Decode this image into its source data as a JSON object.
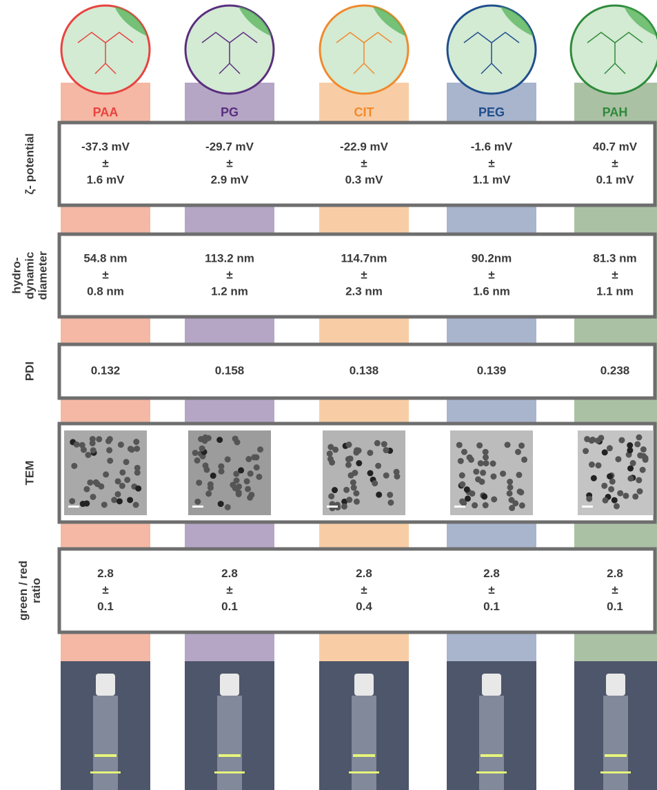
{
  "columns": [
    {
      "name": "PAA",
      "color": "#e8423f",
      "strip": "#f4b8a4"
    },
    {
      "name": "PG",
      "color": "#5a2e7e",
      "strip": "#b5a6c6"
    },
    {
      "name": "CIT",
      "color": "#f08a2c",
      "strip": "#f8cda6"
    },
    {
      "name": "PEG",
      "color": "#1f4e8c",
      "strip": "#a9b4cd"
    },
    {
      "name": "PAH",
      "color": "#2e8a3a",
      "strip": "#abc1a4"
    }
  ],
  "rows": [
    {
      "label": [
        "ζ- potential"
      ],
      "cells": [
        [
          "-37.3 mV",
          "±",
          "1.6 mV"
        ],
        [
          "-29.7 mV",
          "±",
          "2.9 mV"
        ],
        [
          "-22.9 mV",
          "±",
          "0.3 mV"
        ],
        [
          "-1.6 mV",
          "±",
          "1.1 mV"
        ],
        [
          "40.7 mV",
          "±",
          "0.1 mV"
        ]
      ]
    },
    {
      "label": [
        "hydro-",
        "dynamic",
        "diameter"
      ],
      "cells": [
        [
          "54.8 nm",
          "±",
          "0.8 nm"
        ],
        [
          "113.2 nm",
          "±",
          "1.2 nm"
        ],
        [
          "114.7nm",
          "±",
          "2.3 nm"
        ],
        [
          "90.2nm",
          "±",
          "1.6 nm"
        ],
        [
          "81.3 nm",
          "±",
          "1.1 nm"
        ]
      ]
    },
    {
      "label": [
        "PDI"
      ],
      "cells": [
        [
          "0.132"
        ],
        [
          "0.158"
        ],
        [
          "0.138"
        ],
        [
          "0.139"
        ],
        [
          "0.238"
        ]
      ]
    },
    {
      "label": [
        "TEM"
      ],
      "cells": null
    },
    {
      "label": [
        "green / red",
        "ratio"
      ],
      "cells": [
        [
          "2.8",
          "±",
          "0.1"
        ],
        [
          "2.8",
          "±",
          "0.1"
        ],
        [
          "2.8",
          "±",
          "0.4"
        ],
        [
          "2.8",
          "±",
          "0.1"
        ],
        [
          "2.8",
          "±",
          "0.1"
        ]
      ]
    }
  ]
}
